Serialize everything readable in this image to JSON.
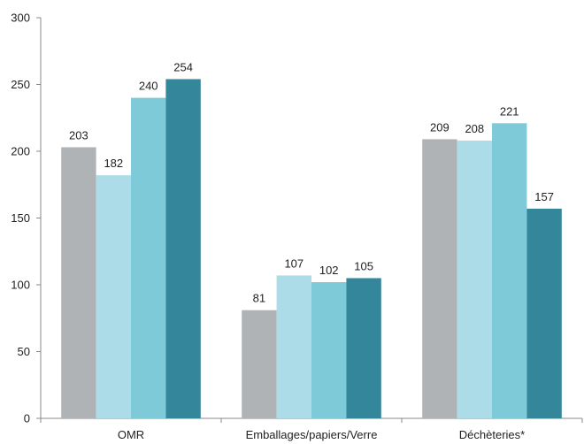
{
  "chart_data": {
    "type": "bar",
    "title": "",
    "xlabel": "",
    "ylabel": "",
    "ylim": [
      0,
      300
    ],
    "yticks": [
      0,
      50,
      100,
      150,
      200,
      250,
      300
    ],
    "grid": false,
    "legend": "none",
    "categories": [
      "OMR",
      "Emballages/papiers/Verre",
      "Déchèteries*"
    ],
    "series": [
      {
        "color": "#b0b3b5",
        "values": [
          203,
          81,
          209
        ]
      },
      {
        "color": "#acdce7",
        "values": [
          182,
          107,
          208
        ]
      },
      {
        "color": "#7ecad9",
        "values": [
          240,
          102,
          221
        ]
      },
      {
        "color": "#34879b",
        "values": [
          254,
          105,
          157
        ]
      }
    ]
  }
}
